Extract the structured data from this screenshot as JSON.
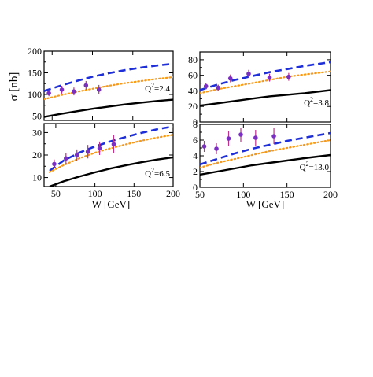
{
  "figure": {
    "ylabel": "σ [nb]",
    "xlabel": "W [GeV]"
  },
  "colors": {
    "dashed": "#1f2fd6",
    "dotted": "#f59a1b",
    "solid": "#000000",
    "marker": "#7b2fc0",
    "errorbar": "#c0308c"
  },
  "chart_data": [
    {
      "type": "line",
      "panel": "top-left",
      "annotation_q": "Q",
      "annotation_sup": "2",
      "annotation_val": "=2.4",
      "xlim": [
        40,
        200
      ],
      "ylim": [
        40,
        200
      ],
      "xticks": [],
      "yticks": [
        50,
        100,
        150,
        200
      ],
      "curves": [
        {
          "style": "dashed",
          "x": [
            40,
            60,
            80,
            100,
            120,
            140,
            160,
            180,
            200
          ],
          "y": [
            108,
            120,
            131,
            141,
            149,
            156,
            162,
            167,
            171
          ]
        },
        {
          "style": "dotted",
          "x": [
            40,
            60,
            80,
            100,
            120,
            140,
            160,
            180,
            200
          ],
          "y": [
            89,
            98,
            106,
            113,
            120,
            126,
            131,
            136,
            140
          ]
        },
        {
          "style": "solid",
          "x": [
            40,
            60,
            80,
            100,
            120,
            140,
            160,
            180,
            200
          ],
          "y": [
            48,
            55,
            61,
            67,
            72,
            77,
            81,
            85,
            88
          ]
        }
      ],
      "points": {
        "x": [
          46,
          62,
          77,
          92,
          108
        ],
        "y": [
          103,
          111,
          107,
          121,
          111
        ],
        "err": [
          7,
          9,
          9,
          10,
          11
        ]
      }
    },
    {
      "type": "line",
      "panel": "top-right",
      "annotation_q": "Q",
      "annotation_sup": "2",
      "annotation_val": "=3.8",
      "xlim": [
        50,
        200
      ],
      "ylim": [
        0,
        90
      ],
      "xticks": [],
      "yticks": [
        0,
        20,
        40,
        60,
        80
      ],
      "curves": [
        {
          "style": "dashed",
          "x": [
            50,
            70,
            90,
            110,
            130,
            150,
            170,
            200
          ],
          "y": [
            41,
            48,
            54,
            59,
            64,
            68,
            72,
            77
          ]
        },
        {
          "style": "dotted",
          "x": [
            50,
            70,
            90,
            110,
            130,
            150,
            170,
            200
          ],
          "y": [
            37,
            42,
            46,
            50,
            54,
            58,
            61,
            65
          ]
        },
        {
          "style": "solid",
          "x": [
            50,
            70,
            90,
            110,
            130,
            150,
            170,
            200
          ],
          "y": [
            21,
            24,
            27,
            30,
            33,
            35,
            37,
            41
          ]
        }
      ],
      "points": {
        "x": [
          57,
          71,
          85,
          106,
          130,
          152
        ],
        "y": [
          46,
          44,
          56,
          62,
          57,
          58
        ],
        "err": [
          4,
          4,
          5,
          5,
          5,
          5
        ]
      }
    },
    {
      "type": "line",
      "panel": "bottom-left",
      "annotation_q": "Q",
      "annotation_sup": "2",
      "annotation_val": "=6.5",
      "xlim": [
        35,
        200
      ],
      "ylim": [
        6,
        34
      ],
      "xticks": [
        50,
        100,
        150,
        200
      ],
      "yticks": [
        10,
        20,
        30
      ],
      "curves": [
        {
          "style": "dashed",
          "x": [
            42,
            60,
            80,
            100,
            120,
            140,
            160,
            180,
            200
          ],
          "y": [
            13,
            17.5,
            21,
            23.8,
            26.1,
            28.1,
            29.9,
            31.5,
            32.7
          ]
        },
        {
          "style": "dotted",
          "x": [
            42,
            60,
            80,
            100,
            120,
            140,
            160,
            180,
            200
          ],
          "y": [
            12.4,
            15.5,
            18.5,
            21,
            23,
            24.8,
            26.4,
            27.8,
            29
          ]
        },
        {
          "style": "solid",
          "x": [
            42,
            60,
            80,
            100,
            120,
            140,
            160,
            180,
            200
          ],
          "y": [
            6,
            8.3,
            10.4,
            12.3,
            14,
            15.5,
            16.8,
            18,
            19
          ]
        }
      ],
      "points": {
        "x": [
          48,
          63,
          77,
          91,
          106,
          124
        ],
        "y": [
          16,
          18.5,
          20,
          21.5,
          23,
          24.8
        ],
        "err": [
          2,
          2.5,
          2.5,
          3,
          3,
          4
        ]
      }
    },
    {
      "type": "line",
      "panel": "bottom-right",
      "annotation_q": "Q",
      "annotation_sup": "2",
      "annotation_val": "=13.0",
      "xlim": [
        50,
        200
      ],
      "ylim": [
        0,
        8
      ],
      "xticks": [
        50,
        100,
        150,
        200
      ],
      "yticks": [
        0,
        2,
        4,
        6,
        8
      ],
      "curves": [
        {
          "style": "dashed",
          "x": [
            50,
            70,
            90,
            110,
            130,
            150,
            170,
            200
          ],
          "y": [
            2.9,
            3.6,
            4.3,
            4.9,
            5.4,
            5.9,
            6.3,
            6.9
          ]
        },
        {
          "style": "dotted",
          "x": [
            50,
            70,
            90,
            110,
            130,
            150,
            170,
            200
          ],
          "y": [
            2.5,
            3.1,
            3.6,
            4.1,
            4.6,
            5,
            5.4,
            6
          ]
        },
        {
          "style": "solid",
          "x": [
            50,
            70,
            90,
            110,
            130,
            150,
            170,
            200
          ],
          "y": [
            1.6,
            2,
            2.4,
            2.8,
            3.1,
            3.4,
            3.7,
            4.1
          ]
        }
      ],
      "points": {
        "x": [
          55,
          69,
          83,
          97,
          114,
          135
        ],
        "y": [
          5.2,
          4.9,
          6.2,
          6.7,
          6.3,
          6.5
        ],
        "err": [
          0.7,
          0.7,
          0.9,
          0.9,
          1,
          1
        ]
      }
    }
  ]
}
